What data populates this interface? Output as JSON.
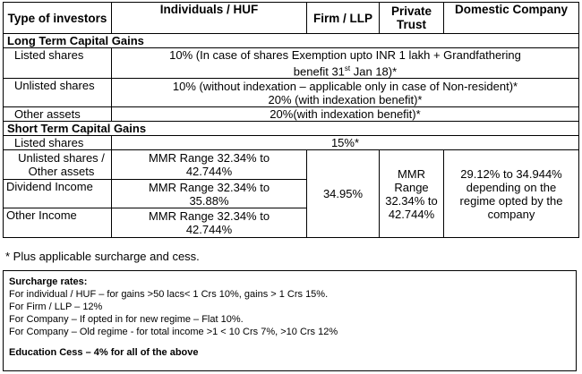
{
  "headers": {
    "type": "Type of investors",
    "individuals": "Individuals / HUF",
    "firm": "Firm / LLP",
    "trust": "Private Trust",
    "company": "Domestic Company"
  },
  "ltcg": {
    "title": "Long Term Capital Gains",
    "listed_label": "Listed shares",
    "listed_value_a": "10% (In case of shares Exemption upto INR 1 lakh + Grandfathering",
    "listed_value_b": "benefit 31",
    "listed_value_sup": "st",
    "listed_value_c": " Jan 18)*",
    "unlisted_label": "Unlisted shares",
    "unlisted_value_1": "10% (without indexation – applicable only in case of Non-resident)*",
    "unlisted_value_2": "20% (with indexation benefit)*",
    "other_label": "Other assets",
    "other_value": "20%(with indexation benefit)*"
  },
  "stcg": {
    "title": "Short Term Capital Gains",
    "listed_label": "Listed shares",
    "listed_value": "15%*",
    "unlisted_label": "Unlisted shares / Other assets",
    "unlisted_ind": "MMR Range 32.34% to 42.744%",
    "dividend_label": "Dividend Income",
    "dividend_ind": "MMR Range 32.34% to 35.88%",
    "otherinc_label": "Other Income",
    "otherinc_ind": "MMR Range 32.34% to 42.744%",
    "firm_value": "34.95%",
    "trust_value": "MMR Range 32.34% to 42.744%",
    "company_value": "29.12% to 34.944% depending on the regime opted by the company"
  },
  "note": "* Plus applicable surcharge and cess.",
  "surcharge": {
    "title": "Surcharge rates:",
    "lines": [
      "For individual / HUF – for gains >50 lacs< 1 Crs 10%, gains > 1 Crs 15%.",
      "For Firm / LLP – 12%",
      "For Company – If opted in for new regime – Flat 10%.",
      "For Company – Old regime - for total income >1 < 10 Crs 7%, >10 Crs 12%"
    ],
    "cess": "Education Cess – 4% for all of the above"
  }
}
